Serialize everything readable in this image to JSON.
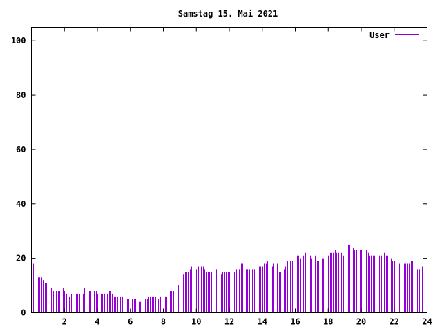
{
  "chart_data": {
    "type": "bar",
    "title": "Samstag 15. Mai 2021",
    "xlabel": "",
    "ylabel": "",
    "xlim": [
      0,
      24
    ],
    "ylim": [
      0,
      105
    ],
    "x_ticks": [
      "2",
      "4",
      "6",
      "8",
      "10",
      "12",
      "14",
      "16",
      "18",
      "20",
      "22",
      "24"
    ],
    "y_ticks": [
      "0",
      "20",
      "40",
      "60",
      "80",
      "100"
    ],
    "grid": false,
    "legend_position": "top-right",
    "series": [
      {
        "name": "User",
        "color": "#9400d3",
        "x_step_hours": 0.1,
        "values": [
          18,
          18,
          17,
          15,
          13,
          13,
          13,
          12,
          11,
          11,
          11,
          10,
          9,
          8,
          8,
          8,
          8,
          8,
          8,
          9,
          8,
          7,
          6,
          6,
          7,
          7,
          7,
          7,
          7,
          7,
          7,
          7,
          9,
          8,
          8,
          8,
          8,
          8,
          8,
          8,
          7,
          7,
          7,
          7,
          7,
          7,
          7,
          8,
          8,
          7,
          6,
          6,
          6,
          6,
          6,
          6,
          5,
          5,
          5,
          5,
          5,
          5,
          5,
          5,
          5,
          4,
          4,
          5,
          5,
          5,
          5,
          6,
          6,
          6,
          6,
          6,
          5,
          5,
          6,
          6,
          6,
          6,
          6,
          6,
          8,
          8,
          8,
          8,
          9,
          10,
          12,
          13,
          14,
          15,
          15,
          15,
          16,
          17,
          17,
          16,
          16,
          17,
          17,
          17,
          17,
          16,
          15,
          15,
          15,
          15,
          16,
          16,
          16,
          16,
          15,
          14,
          15,
          15,
          15,
          15,
          15,
          15,
          15,
          15,
          16,
          16,
          16,
          18,
          18,
          18,
          16,
          16,
          16,
          16,
          16,
          16,
          17,
          17,
          17,
          17,
          17,
          18,
          18,
          19,
          18,
          18,
          17,
          18,
          18,
          18,
          15,
          15,
          15,
          16,
          17,
          19,
          19,
          19,
          19,
          21,
          21,
          21,
          21,
          20,
          21,
          21,
          22,
          21,
          22,
          21,
          20,
          20,
          21,
          19,
          19,
          19,
          20,
          20,
          22,
          22,
          21,
          22,
          22,
          22,
          23,
          22,
          22,
          22,
          22,
          21,
          25,
          25,
          25,
          25,
          24,
          24,
          23,
          23,
          23,
          23,
          23,
          24,
          24,
          23,
          22,
          21,
          21,
          21,
          21,
          21,
          21,
          21,
          21,
          22,
          22,
          21,
          21,
          20,
          20,
          19,
          19,
          19,
          20,
          18,
          18,
          18,
          18,
          18,
          18,
          18,
          19,
          19,
          18,
          16,
          16,
          16,
          16,
          17
        ]
      }
    ]
  }
}
